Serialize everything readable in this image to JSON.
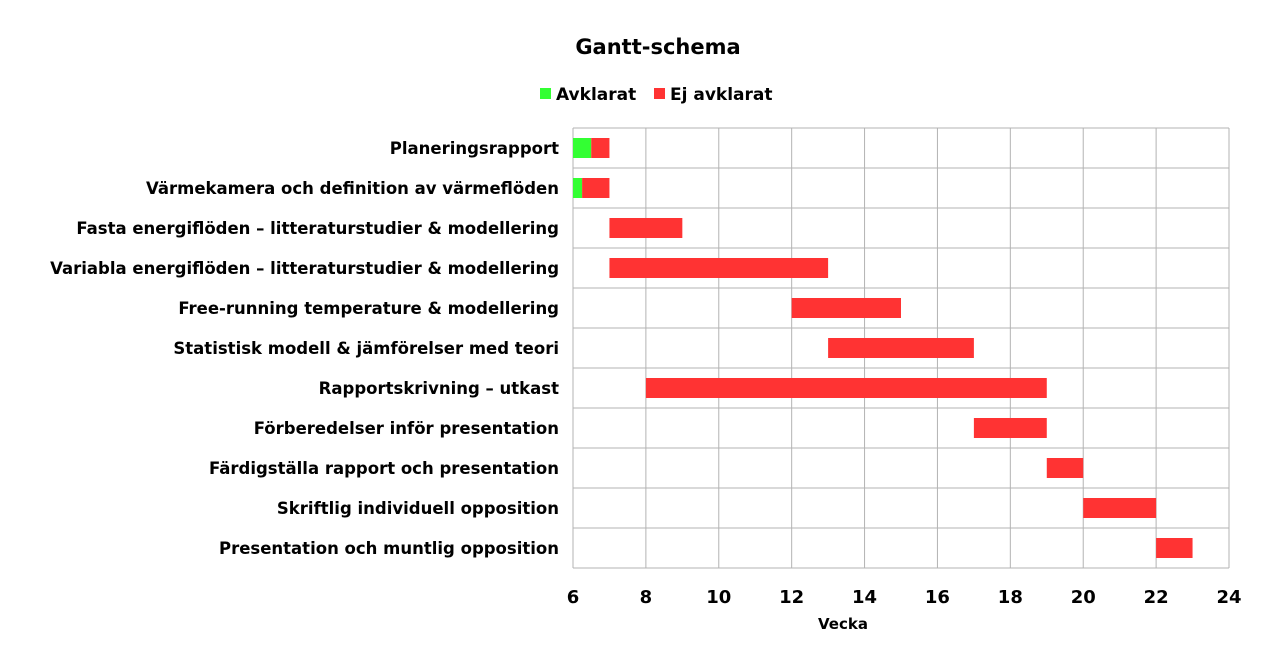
{
  "chart_data": {
    "type": "bar",
    "title": "Gantt-schema",
    "xlabel": "Vecka",
    "ylabel": "",
    "xlim": [
      6,
      24
    ],
    "x_ticks": [
      "6",
      "8",
      "10",
      "12",
      "14",
      "16",
      "18",
      "20",
      "22",
      "24"
    ],
    "grid": true,
    "legend_position": "top",
    "colors": {
      "done": "#33ff33",
      "not_done": "#ff3333",
      "grid": "#b3b3b3"
    },
    "series": [
      {
        "name": "Avklarat"
      },
      {
        "name": "Ej avklarat"
      }
    ],
    "tasks": [
      {
        "label": "Planeringsrapport",
        "start": 6,
        "done_end": 6.5,
        "end": 7
      },
      {
        "label": "Värmekamera och definition av värmeflöden",
        "start": 6,
        "done_end": 6.25,
        "end": 7
      },
      {
        "label": "Fasta energiflöden – litteraturstudier & modellering",
        "start": 7,
        "done_end": 7,
        "end": 9
      },
      {
        "label": "Variabla energiflöden – litteraturstudier & modellering",
        "start": 7,
        "done_end": 7,
        "end": 13
      },
      {
        "label": "Free-running temperature & modellering",
        "start": 12,
        "done_end": 12,
        "end": 15
      },
      {
        "label": "Statistisk modell & jämförelser med teori",
        "start": 13,
        "done_end": 13,
        "end": 17
      },
      {
        "label": "Rapportskrivning – utkast",
        "start": 8,
        "done_end": 8,
        "end": 19
      },
      {
        "label": "Förberedelser inför presentation",
        "start": 17,
        "done_end": 17,
        "end": 19
      },
      {
        "label": "Färdigställa rapport och presentation",
        "start": 19,
        "done_end": 19,
        "end": 20
      },
      {
        "label": "Skriftlig individuell opposition",
        "start": 20,
        "done_end": 20,
        "end": 22
      },
      {
        "label": "Presentation och muntlig opposition",
        "start": 22,
        "done_end": 22,
        "end": 23
      }
    ]
  }
}
